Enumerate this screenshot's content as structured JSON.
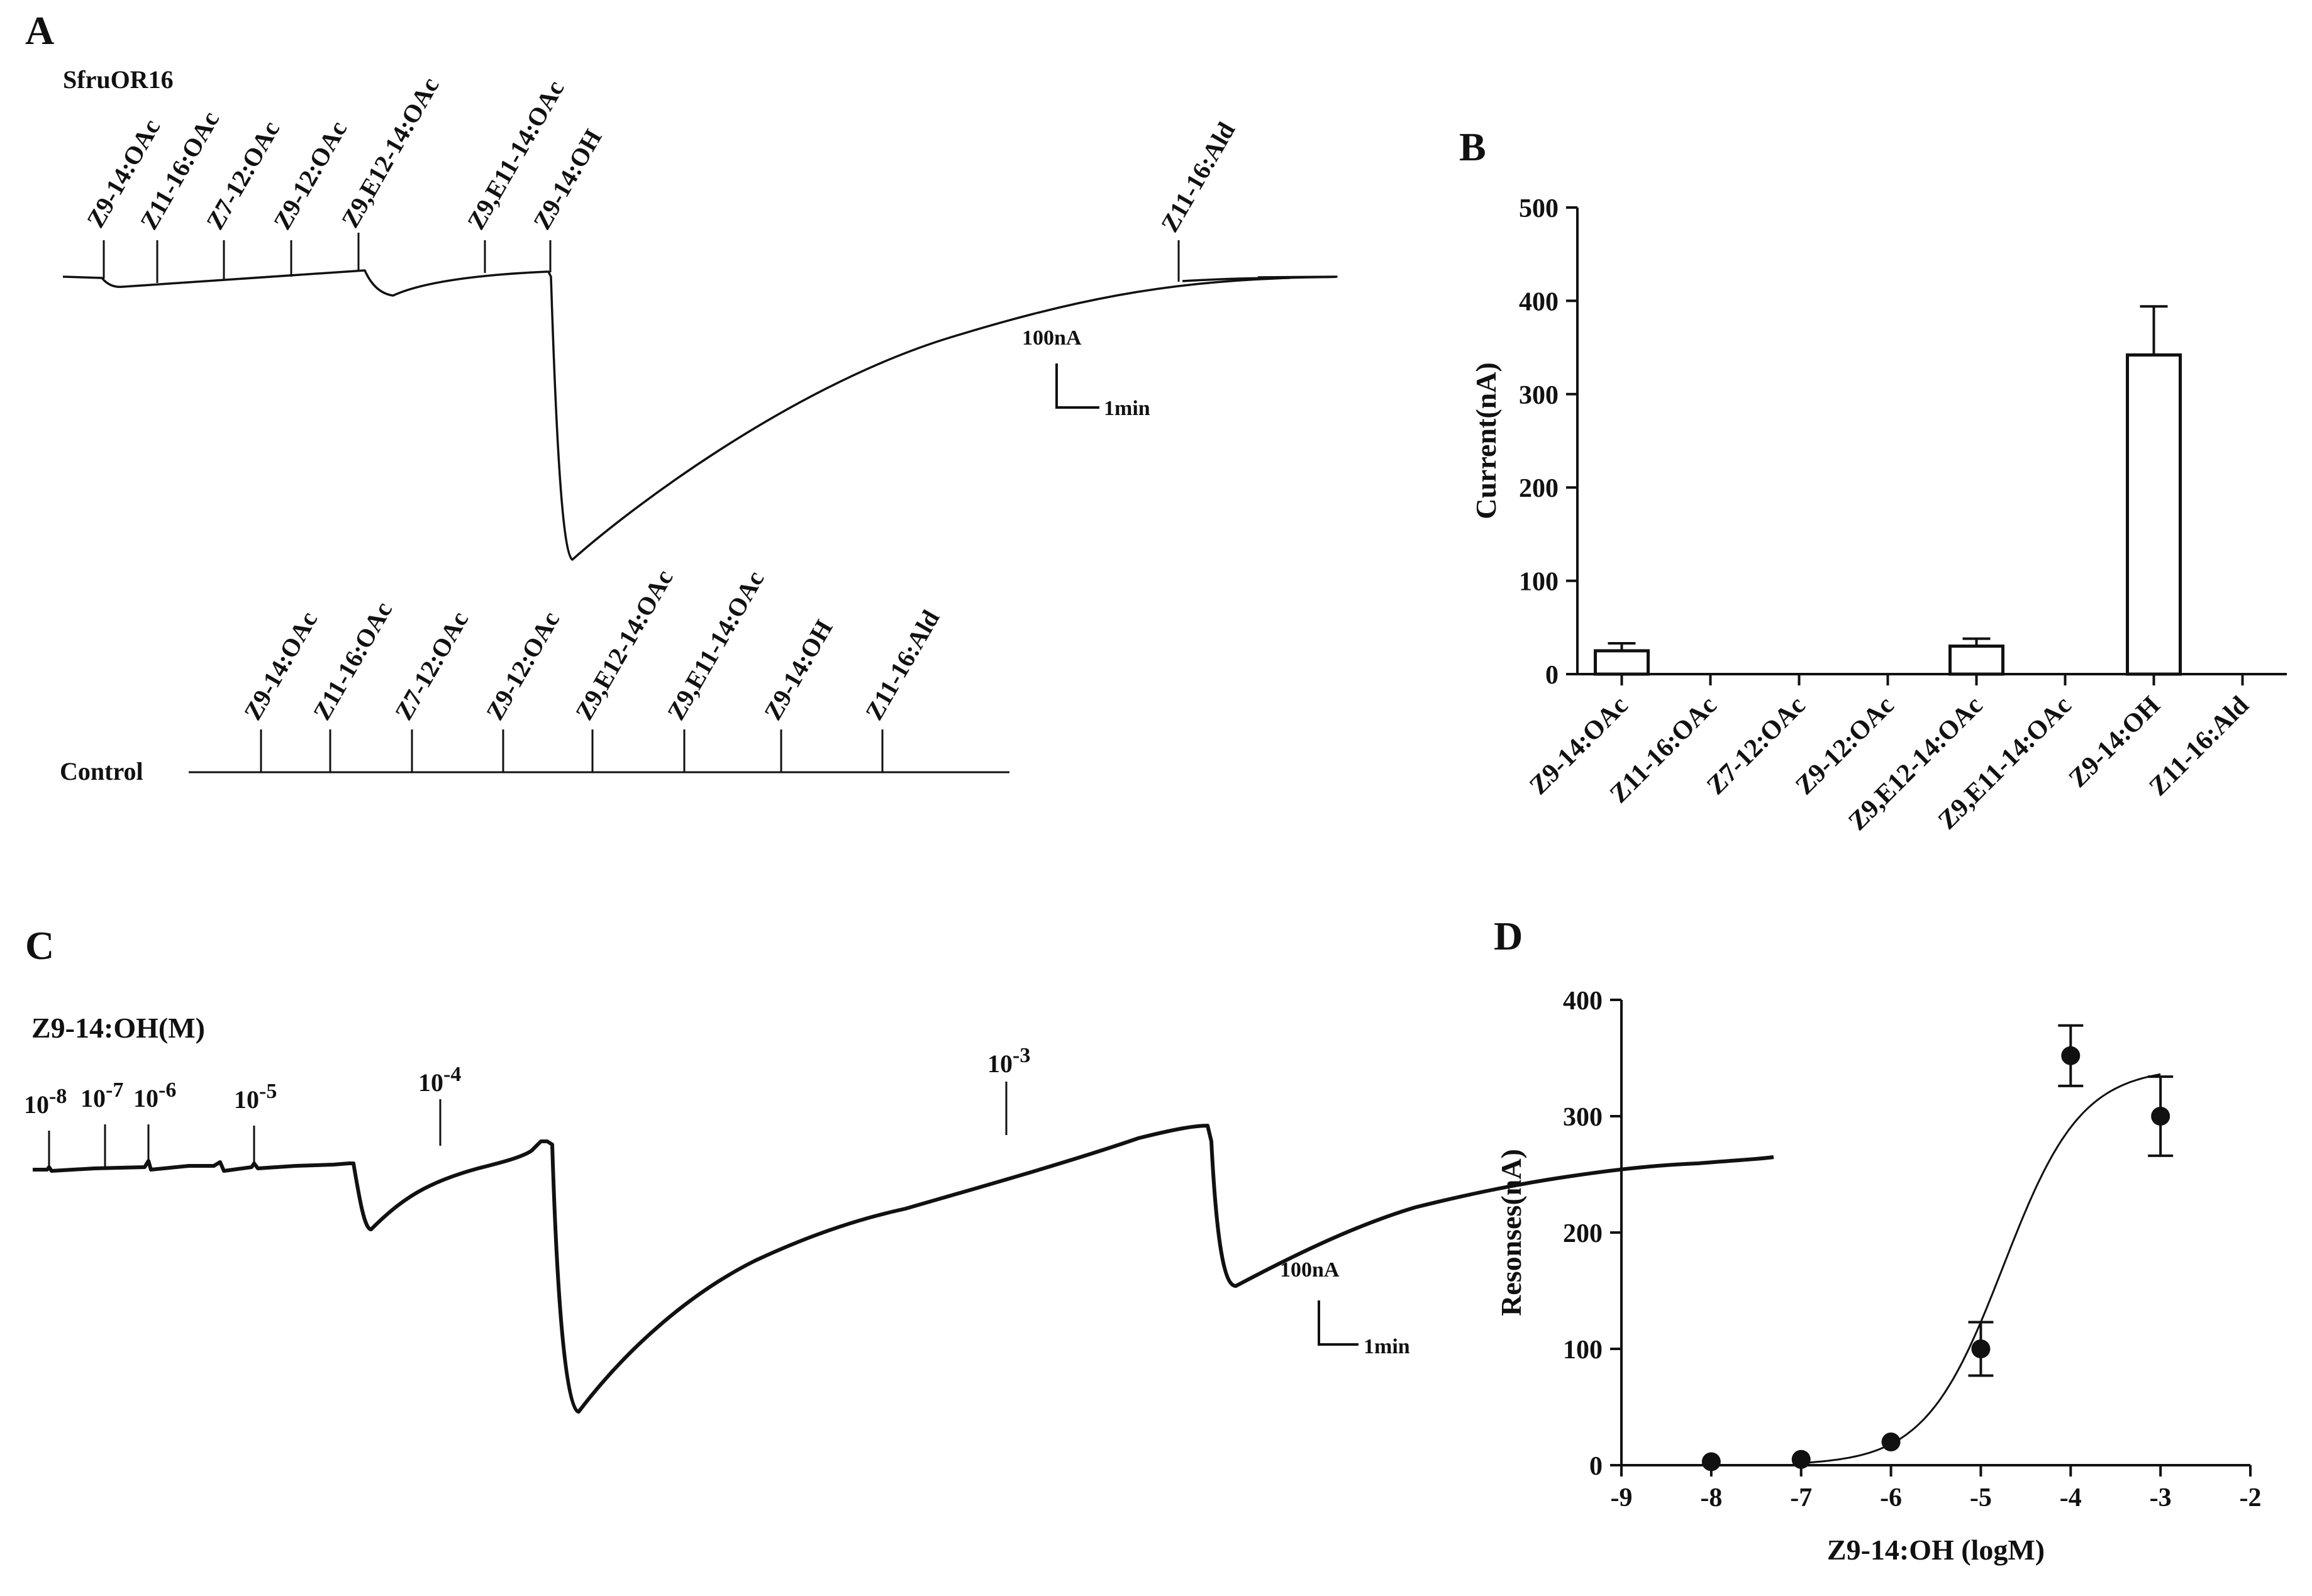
{
  "panels": {
    "A": {
      "letter": "A",
      "name": "SfruOR16",
      "control_name": "Control",
      "compounds": [
        "Z9-14:OAc",
        "Z11-16:OAc",
        "Z7-12:OAc",
        "Z9-12:OAc",
        "Z9,E12-14:OAc",
        "Z9,E11-14:OAc",
        "Z9-14:OH",
        "Z11-16:Ald"
      ],
      "scale_current": "100nA",
      "scale_time": "1min"
    },
    "B": {
      "letter": "B"
    },
    "C": {
      "letter": "C",
      "title": "Z9-14:OH(M)",
      "doses": [
        {
          "base": "10",
          "exp": "-8"
        },
        {
          "base": "10",
          "exp": "-7"
        },
        {
          "base": "10",
          "exp": "-6"
        },
        {
          "base": "10",
          "exp": "-5"
        },
        {
          "base": "10",
          "exp": "-4"
        },
        {
          "base": "10",
          "exp": "-3"
        }
      ],
      "scale_current": "100nA",
      "scale_time": "1min"
    },
    "D": {
      "letter": "D"
    }
  },
  "chart_data": [
    {
      "panel": "B",
      "type": "bar",
      "title": "",
      "xlabel": "",
      "ylabel": "Current(nA)",
      "ylim": [
        0,
        500
      ],
      "yticks": [
        0,
        100,
        200,
        300,
        400,
        500
      ],
      "categories": [
        "Z9-14:OAc",
        "Z11-16:OAc",
        "Z7-12:OAc",
        "Z9-12:OAc",
        "Z9,E12-14:OAc",
        "Z9,E11-14:OAc",
        "Z9-14:OH",
        "Z11-16:Ald"
      ],
      "values": [
        25,
        0,
        0,
        0,
        30,
        0,
        342,
        0
      ],
      "errors": [
        8,
        0,
        0,
        0,
        8,
        0,
        52,
        0
      ]
    },
    {
      "panel": "D",
      "type": "scatter",
      "title": "",
      "xlabel": "Z9-14:OH (logM)",
      "ylabel": "Resonses(nA)",
      "xlim": [
        -9,
        -2
      ],
      "ylim": [
        0,
        400
      ],
      "xticks": [
        -9,
        -8,
        -7,
        -6,
        -5,
        -4,
        -3,
        -2
      ],
      "yticks": [
        0,
        100,
        200,
        300,
        400
      ],
      "x": [
        -8,
        -7,
        -6,
        -5,
        -4,
        -3
      ],
      "y": [
        3,
        5,
        20,
        100,
        352,
        300
      ],
      "errors": [
        0,
        0,
        0,
        23,
        26,
        34
      ],
      "fit": {
        "model": "sigmoid",
        "bottom": 0,
        "top": 342,
        "logEC50": -4.75,
        "hill": 1.0,
        "x_range": [
          -7,
          -3
        ]
      }
    }
  ]
}
